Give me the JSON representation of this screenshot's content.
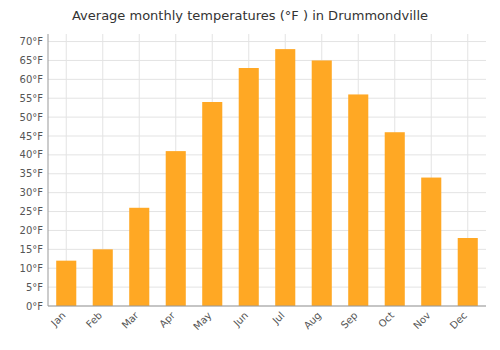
{
  "chart_data": {
    "type": "bar",
    "title": "Average monthly temperatures (°F ) in Drummondville",
    "categories": [
      "Jan",
      "Feb",
      "Mar",
      "Apr",
      "May",
      "Jun",
      "Jul",
      "Aug",
      "Sep",
      "Oct",
      "Nov",
      "Dec"
    ],
    "values": [
      12,
      15,
      26,
      41,
      54,
      63,
      68,
      65,
      56,
      46,
      34,
      18
    ],
    "color": "#FFA824",
    "ylim": [
      0,
      72
    ],
    "yticks": [
      {
        "value": 0,
        "label": "0°F"
      },
      {
        "value": 5,
        "label": "5°F"
      },
      {
        "value": 10,
        "label": "10°F"
      },
      {
        "value": 15,
        "label": "15°F"
      },
      {
        "value": 20,
        "label": "20°F"
      },
      {
        "value": 25,
        "label": "25°F"
      },
      {
        "value": 30,
        "label": "30°F"
      },
      {
        "value": 35,
        "label": "35°F"
      },
      {
        "value": 40,
        "label": "40°F"
      },
      {
        "value": 45,
        "label": "45°F"
      },
      {
        "value": 50,
        "label": "50°F"
      },
      {
        "value": 55,
        "label": "55°F"
      },
      {
        "value": 60,
        "label": "60°F"
      },
      {
        "value": 65,
        "label": "65°F"
      },
      {
        "value": 70,
        "label": "70°F"
      }
    ],
    "grid": true
  }
}
